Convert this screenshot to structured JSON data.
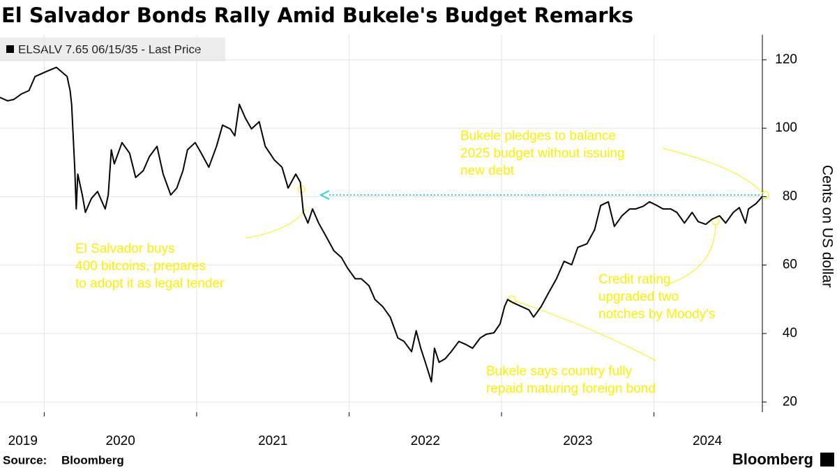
{
  "chart_data": {
    "type": "line",
    "title": "El Salvador Bonds Rally Amid Bukele's Budget Remarks",
    "y_label": "Cents on US dollar",
    "source": {
      "label": "Source:",
      "text": "Bloomberg"
    },
    "brand": "Bloomberg",
    "xlim": [
      2019.71,
      2024.72
    ],
    "ylim": [
      17,
      127.3
    ],
    "xticks": [
      2020,
      2021,
      2022,
      2023,
      2024
    ],
    "xlabels": [
      {
        "value": 2019.86,
        "label": "2019"
      },
      {
        "value": 2020.5,
        "label": "2020"
      },
      {
        "value": 2021.5,
        "label": "2021"
      },
      {
        "value": 2022.5,
        "label": "2022"
      },
      {
        "value": 2023.5,
        "label": "2023"
      },
      {
        "value": 2024.35,
        "label": "2024"
      }
    ],
    "yticks": [
      20,
      40,
      60,
      80,
      100,
      120
    ],
    "grid": true,
    "annotations": [
      {
        "lines": [
          "El Salvador buys",
          "400 bitcoins, prepares",
          "to adopt it as legal tender"
        ]
      },
      {
        "lines": [
          "Bukele pledges to balance",
          "2025 budget without issuing",
          "new debt"
        ]
      },
      {
        "lines": [
          "Credit rating",
          "upgraded two",
          "notches by Moody's"
        ]
      },
      {
        "lines": [
          "Bukele says country fully",
          "repaid maturing foreign bond"
        ]
      }
    ],
    "series": [
      {
        "name": "ELSALV 7.65 06/15/35 - Last Price",
        "color": "#000000",
        "x": [
          2019.71,
          2019.76,
          2019.8,
          2019.85,
          2019.9,
          2019.94,
          2020.01,
          2020.08,
          2020.15,
          2020.17,
          2020.18,
          2020.2,
          2020.21,
          2020.22,
          2020.25,
          2020.27,
          2020.31,
          2020.35,
          2020.4,
          2020.42,
          2020.44,
          2020.46,
          2020.51,
          2020.56,
          2020.6,
          2020.65,
          2020.69,
          2020.74,
          2020.78,
          2020.83,
          2020.87,
          2020.91,
          2020.94,
          2020.99,
          2021.03,
          2021.08,
          2021.13,
          2021.17,
          2021.22,
          2021.25,
          2021.28,
          2021.32,
          2021.36,
          2021.41,
          2021.45,
          2021.51,
          2021.56,
          2021.6,
          2021.65,
          2021.68,
          2021.7,
          2021.73,
          2021.76,
          2021.8,
          2021.85,
          2021.9,
          2021.95,
          2021.99,
          2022.04,
          2022.08,
          2022.13,
          2022.17,
          2022.22,
          2022.27,
          2022.32,
          2022.36,
          2022.41,
          2022.44,
          2022.47,
          2022.5,
          2022.54,
          2022.56,
          2022.59,
          2022.63,
          2022.67,
          2022.72,
          2022.77,
          2022.81,
          2022.86,
          2022.9,
          2022.95,
          2022.99,
          2023.02,
          2023.04,
          2023.08,
          2023.13,
          2023.18,
          2023.21,
          2023.26,
          2023.31,
          2023.36,
          2023.41,
          2023.46,
          2023.5,
          2023.56,
          2023.61,
          2023.65,
          2023.7,
          2023.74,
          2023.79,
          2023.84,
          2023.88,
          2023.93,
          2023.97,
          2024.02,
          2024.06,
          2024.11,
          2024.15,
          2024.2,
          2024.25,
          2024.29,
          2024.34,
          2024.38,
          2024.43,
          2024.47,
          2024.52,
          2024.56,
          2024.6,
          2024.62,
          2024.67,
          2024.7,
          2024.71
        ],
        "values": [
          109,
          108,
          108.4,
          110,
          111,
          115.1,
          116.5,
          117.8,
          115.1,
          111,
          107,
          88.6,
          76.4,
          86.6,
          80.5,
          75.4,
          79.5,
          81.5,
          76.4,
          80.5,
          93.7,
          89.6,
          95.8,
          92.7,
          85.6,
          87.6,
          91.7,
          94.7,
          86.6,
          80.5,
          82.5,
          87.6,
          93.7,
          95.8,
          92.7,
          88.6,
          94.7,
          100.9,
          99.8,
          97.8,
          107,
          102.9,
          99.8,
          101.9,
          94.7,
          90.7,
          88.6,
          82.5,
          86.6,
          84.2,
          75.4,
          72.3,
          76.4,
          72.3,
          68.3,
          64.2,
          62.2,
          59.1,
          56,
          56,
          54,
          49.9,
          47.9,
          44.8,
          38.7,
          37.7,
          34.7,
          40.8,
          35.7,
          31.6,
          25.9,
          35.7,
          31.6,
          32.6,
          34.7,
          37.7,
          36.7,
          35.7,
          38.7,
          39.8,
          40.2,
          42.8,
          47.9,
          49.9,
          48.9,
          47.9,
          46.9,
          44.8,
          47.9,
          52,
          56,
          61.1,
          60.1,
          65.2,
          66.2,
          70.3,
          77.4,
          78.5,
          71.3,
          74.4,
          76.4,
          76.4,
          77.2,
          78.5,
          77.4,
          76.4,
          76.4,
          75.4,
          72.3,
          75.4,
          72.7,
          71.9,
          73.4,
          74.4,
          72.3,
          75.4,
          76.8,
          72.3,
          76.4,
          78,
          79.5,
          80.1
        ]
      }
    ]
  }
}
